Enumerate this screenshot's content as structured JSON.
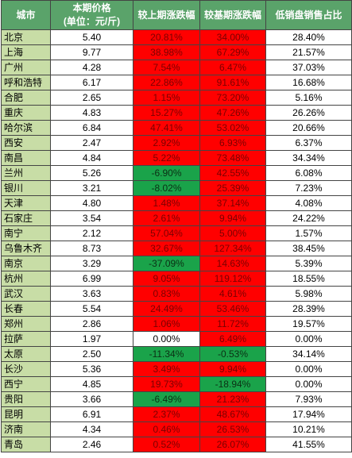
{
  "headers": {
    "city": "城市",
    "price_line1": "本期价格",
    "price_line2": "(单位：元/斤)",
    "mom": "较上期涨跌幅",
    "yoy": "较基期涨跌幅",
    "share": "低销盘销售占比"
  },
  "colors": {
    "header_bg": "#5aa36a",
    "city_bg": "#c8dda6",
    "positive_bg": "#ff0000",
    "negative_bg": "#1aa34a"
  },
  "rows": [
    {
      "city": "北京",
      "price": "5.40",
      "mom": "20.81%",
      "yoy": "34.00%",
      "share": "28.40%"
    },
    {
      "city": "上海",
      "price": "9.77",
      "mom": "38.98%",
      "yoy": "67.29%",
      "share": "21.57%"
    },
    {
      "city": "广州",
      "price": "4.28",
      "mom": "7.54%",
      "yoy": "6.47%",
      "share": "37.03%"
    },
    {
      "city": "呼和浩特",
      "price": "6.17",
      "mom": "22.86%",
      "yoy": "91.61%",
      "share": "16.68%"
    },
    {
      "city": "合肥",
      "price": "2.65",
      "mom": "1.15%",
      "yoy": "73.20%",
      "share": "5.16%"
    },
    {
      "city": "重庆",
      "price": "4.83",
      "mom": "15.27%",
      "yoy": "47.26%",
      "share": "26.26%"
    },
    {
      "city": "哈尔滨",
      "price": "6.84",
      "mom": "47.41%",
      "yoy": "53.02%",
      "share": "20.66%"
    },
    {
      "city": "西安",
      "price": "2.47",
      "mom": "2.92%",
      "yoy": "6.93%",
      "share": "6.37%"
    },
    {
      "city": "南昌",
      "price": "4.84",
      "mom": "5.22%",
      "yoy": "73.48%",
      "share": "34.34%"
    },
    {
      "city": "兰州",
      "price": "5.26",
      "mom": "-6.90%",
      "yoy": "42.55%",
      "share": "6.08%"
    },
    {
      "city": "银川",
      "price": "3.21",
      "mom": "-8.02%",
      "yoy": "25.39%",
      "share": "7.23%"
    },
    {
      "city": "天津",
      "price": "4.80",
      "mom": "1.48%",
      "yoy": "37.14%",
      "share": "4.08%"
    },
    {
      "city": "石家庄",
      "price": "3.54",
      "mom": "2.61%",
      "yoy": "9.94%",
      "share": "24.22%"
    },
    {
      "city": "南宁",
      "price": "2.12",
      "mom": "57.04%",
      "yoy": "5.00%",
      "share": "1.57%"
    },
    {
      "city": "乌鲁木齐",
      "price": "8.73",
      "mom": "32.67%",
      "yoy": "127.34%",
      "share": "38.45%"
    },
    {
      "city": "南京",
      "price": "3.29",
      "mom": "-37.09%",
      "yoy": "14.63%",
      "share": "5.39%"
    },
    {
      "city": "杭州",
      "price": "6.99",
      "mom": "9.05%",
      "yoy": "119.12%",
      "share": "18.55%"
    },
    {
      "city": "武汉",
      "price": "3.63",
      "mom": "0.83%",
      "yoy": "4.61%",
      "share": "5.98%"
    },
    {
      "city": "长春",
      "price": "5.54",
      "mom": "24.49%",
      "yoy": "53.46%",
      "share": "28.39%"
    },
    {
      "city": "郑州",
      "price": "2.86",
      "mom": "1.06%",
      "yoy": "11.72%",
      "share": "19.57%"
    },
    {
      "city": "拉萨",
      "price": "1.97",
      "mom": "0.00%",
      "yoy": "6.49%",
      "share": "0.00%"
    },
    {
      "city": "太原",
      "price": "2.50",
      "mom": "-11.34%",
      "yoy": "-0.53%",
      "share": "34.14%"
    },
    {
      "city": "长沙",
      "price": "5.36",
      "mom": "3.49%",
      "yoy": "9.94%",
      "share": "0.00%"
    },
    {
      "city": "西宁",
      "price": "4.85",
      "mom": "19.73%",
      "yoy": "-18.94%",
      "share": "0.00%"
    },
    {
      "city": "贵阳",
      "price": "3.66",
      "mom": "-6.49%",
      "yoy": "21.23%",
      "share": "7.93%"
    },
    {
      "city": "昆明",
      "price": "6.91",
      "mom": "2.37%",
      "yoy": "48.67%",
      "share": "17.94%"
    },
    {
      "city": "济南",
      "price": "4.34",
      "mom": "0.46%",
      "yoy": "26.53%",
      "share": "10.21%"
    },
    {
      "city": "青岛",
      "price": "2.46",
      "mom": "0.52%",
      "yoy": "26.07%",
      "share": "41.55%"
    }
  ]
}
